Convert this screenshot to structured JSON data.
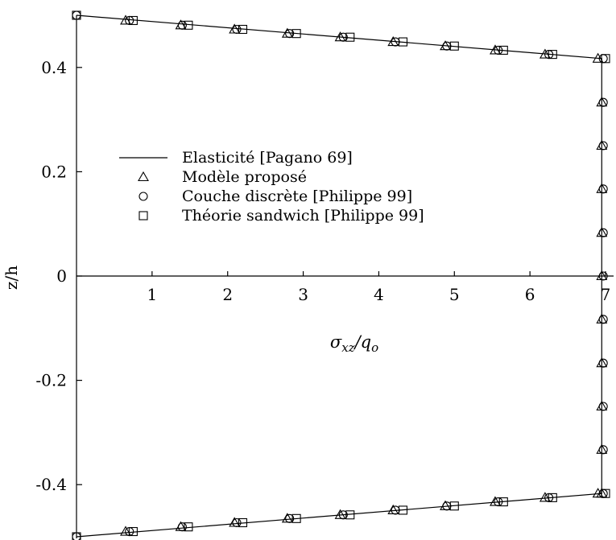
{
  "chart_data": {
    "type": "line",
    "xlabel": "σxz/qo",
    "ylabel": "z/h",
    "xlim": [
      0,
      7
    ],
    "ylim": [
      -0.5,
      0.5
    ],
    "x_ticks": [
      {
        "value": 1,
        "label": "1"
      },
      {
        "value": 2,
        "label": "2"
      },
      {
        "value": 3,
        "label": "3"
      },
      {
        "value": 4,
        "label": "4"
      },
      {
        "value": 5,
        "label": "5"
      },
      {
        "value": 6,
        "label": "6"
      },
      {
        "value": 7,
        "label": "7"
      }
    ],
    "y_ticks": [
      {
        "value": 0.4,
        "label": "0.4"
      },
      {
        "value": 0.2,
        "label": "0.2"
      },
      {
        "value": 0,
        "label": "0"
      },
      {
        "value": -0.2,
        "label": "-0.2"
      },
      {
        "value": -0.4,
        "label": "-0.4"
      }
    ],
    "grid": false,
    "legend_position": "center-left",
    "series": [
      {
        "name": "Elasticité [Pagano 69]",
        "marker": "line",
        "points": [
          [
            0,
            0.5
          ],
          [
            6.95,
            0.417
          ],
          [
            6.95,
            -0.417
          ],
          [
            0,
            -0.5
          ]
        ]
      },
      {
        "name": "Modèle proposé",
        "marker": "triangle",
        "points": [
          [
            0.65,
            0.49
          ],
          [
            1.38,
            0.481
          ],
          [
            2.09,
            0.473
          ],
          [
            2.79,
            0.465
          ],
          [
            3.49,
            0.458
          ],
          [
            4.19,
            0.449
          ],
          [
            4.88,
            0.441
          ],
          [
            5.54,
            0.433
          ],
          [
            6.2,
            0.425
          ],
          [
            6.9,
            0.417
          ],
          [
            6.95,
            0.333
          ],
          [
            6.95,
            0.25
          ],
          [
            6.95,
            0.167
          ],
          [
            6.95,
            0.083
          ],
          [
            6.95,
            0.0
          ],
          [
            6.95,
            -0.083
          ],
          [
            6.95,
            -0.167
          ],
          [
            6.95,
            -0.25
          ],
          [
            6.95,
            -0.333
          ],
          [
            6.95,
            -0.417
          ],
          [
            6.9,
            -0.417
          ],
          [
            6.2,
            -0.425
          ],
          [
            5.54,
            -0.433
          ],
          [
            4.88,
            -0.441
          ],
          [
            4.19,
            -0.449
          ],
          [
            3.49,
            -0.458
          ],
          [
            2.79,
            -0.465
          ],
          [
            2.09,
            -0.473
          ],
          [
            1.38,
            -0.481
          ],
          [
            0.65,
            -0.49
          ]
        ]
      },
      {
        "name": "Couche discrète [Philippe 99]",
        "marker": "circle",
        "points": [
          [
            0,
            0.5
          ],
          [
            0.7,
            0.49
          ],
          [
            1.4,
            0.481
          ],
          [
            2.12,
            0.473
          ],
          [
            2.82,
            0.465
          ],
          [
            3.53,
            0.458
          ],
          [
            4.22,
            0.449
          ],
          [
            4.9,
            0.441
          ],
          [
            5.58,
            0.433
          ],
          [
            6.25,
            0.425
          ],
          [
            6.97,
            0.417
          ],
          [
            6.97,
            0.333
          ],
          [
            6.97,
            0.25
          ],
          [
            6.97,
            0.167
          ],
          [
            6.97,
            0.083
          ],
          [
            6.97,
            0.0
          ],
          [
            6.97,
            -0.083
          ],
          [
            6.97,
            -0.167
          ],
          [
            6.97,
            -0.25
          ],
          [
            6.97,
            -0.333
          ],
          [
            6.97,
            -0.417
          ],
          [
            6.25,
            -0.425
          ],
          [
            5.58,
            -0.433
          ],
          [
            4.9,
            -0.441
          ],
          [
            4.22,
            -0.449
          ],
          [
            3.53,
            -0.458
          ],
          [
            2.82,
            -0.465
          ],
          [
            2.12,
            -0.473
          ],
          [
            1.4,
            -0.481
          ],
          [
            0.7,
            -0.49
          ],
          [
            0,
            -0.5
          ]
        ]
      },
      {
        "name": "Théorie sandwich [Philippe 99]",
        "marker": "square",
        "points": [
          [
            0,
            0.5
          ],
          [
            0.75,
            0.49
          ],
          [
            1.48,
            0.481
          ],
          [
            2.2,
            0.473
          ],
          [
            2.91,
            0.465
          ],
          [
            3.62,
            0.458
          ],
          [
            4.32,
            0.449
          ],
          [
            5.0,
            0.441
          ],
          [
            5.65,
            0.433
          ],
          [
            6.3,
            0.425
          ],
          [
            7.0,
            0.417
          ],
          [
            7.0,
            -0.417
          ],
          [
            6.3,
            -0.425
          ],
          [
            5.65,
            -0.433
          ],
          [
            5.0,
            -0.441
          ],
          [
            4.32,
            -0.449
          ],
          [
            3.62,
            -0.458
          ],
          [
            2.91,
            -0.465
          ],
          [
            2.2,
            -0.473
          ],
          [
            1.48,
            -0.481
          ],
          [
            0.75,
            -0.49
          ],
          [
            0,
            -0.5
          ]
        ]
      }
    ]
  }
}
